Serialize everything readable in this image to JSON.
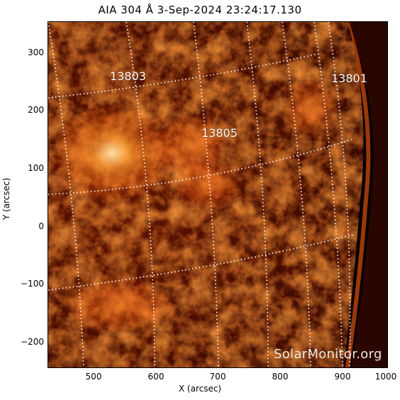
{
  "title": "AIA 304 Å  3-Sep-2024 23:24:17.130",
  "xlabel": "X (arcsec)",
  "ylabel": "Y (arcsec)",
  "x_ticks": [
    "500",
    "600",
    "700",
    "800",
    "900",
    "1000"
  ],
  "y_ticks": [
    "300",
    "200",
    "100",
    "0",
    "−100",
    "−200"
  ],
  "regions": [
    "13803",
    "13805",
    "13801"
  ],
  "credit": "SolarMonitor.org",
  "colors": {
    "disk_dark": "#140300",
    "disk_mid": "#8a1d00",
    "disk_bright": "#ff7a1a",
    "grid": "#ffffff"
  }
}
